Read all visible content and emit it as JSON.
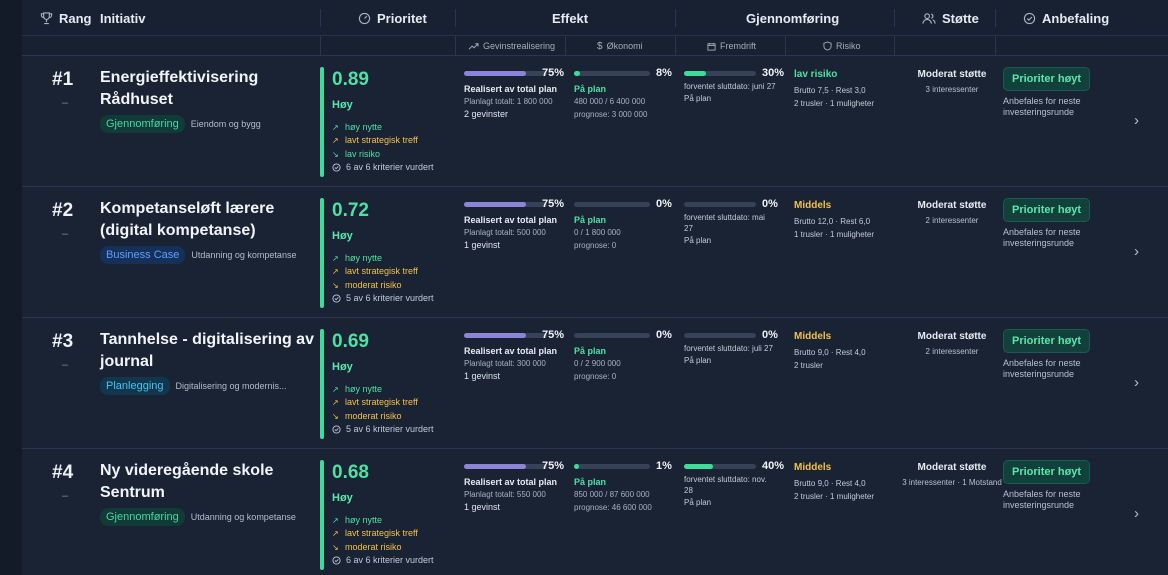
{
  "header": {
    "rang": "Rang",
    "initiativ": "Initiativ",
    "prioritet": "Prioritet",
    "effekt": "Effekt",
    "gjennomforing": "Gjennomføring",
    "stotte": "Støtte",
    "anbefaling": "Anbefaling"
  },
  "subheader": {
    "gevinstrealisering": "Gevinstrealisering",
    "okonomi": "Økonomi",
    "fremdrift": "Fremdrift",
    "risiko": "Risiko"
  },
  "colors": {
    "background": "#1a2334",
    "accent_green": "#4ee0a4",
    "warning_yellow": "#f2c14b",
    "gevinst_bar": "#8b84d7",
    "fremdrift_bar": "#3ddc9a"
  },
  "rows": [
    {
      "rank": "#1",
      "rank_change": "–",
      "title": "Energieffektivisering Rådhuset",
      "phase": "Gjennomføring",
      "category": "Eiendom og bygg",
      "score": "0.89",
      "level": "Høy",
      "reasons": [
        {
          "icon": "trend-up-arrow",
          "text": "høy nytte"
        },
        {
          "icon": "trend-up-arrow",
          "text": "lavt strategisk treff"
        },
        {
          "icon": "trend-down-arrow",
          "text": "lav risiko"
        }
      ],
      "criteria": "6 av 6 kriterier vurdert",
      "gevinst": {
        "pct": "75%",
        "value": 0.75,
        "label": "Realisert av total plan",
        "plan": "Planlagt totalt: 1 800 000",
        "count": "2 gevinster"
      },
      "okonomi": {
        "pct": "8%",
        "value": 0.08,
        "status": "På plan",
        "used": "480 000 / 6 400 000",
        "prognose": "prognose: 3 000 000"
      },
      "fremdrift": {
        "pct": "30%",
        "value": 0.3,
        "end": "forventet sluttdato: juni 27",
        "status": "På plan"
      },
      "risiko": {
        "level": "lav risiko",
        "tone": "green",
        "detail": "Brutto 7,5 · Rest 3,0",
        "counts": "2 trusler · 1 muligheter"
      },
      "support": {
        "level": "Moderat støtte",
        "detail": "3 interessenter"
      },
      "recommendation": {
        "label": "Prioriter høyt",
        "note": "Anbefales for neste investeringsrunde"
      }
    },
    {
      "rank": "#2",
      "rank_change": "–",
      "title": "Kompetanseløft lærere (digital kompetanse)",
      "phase": "Business Case",
      "category": "Utdanning og kompetanse",
      "score": "0.72",
      "level": "Høy",
      "reasons": [
        {
          "icon": "trend-up-arrow",
          "text": "høy nytte"
        },
        {
          "icon": "trend-up-arrow",
          "text": "lavt strategisk treff"
        },
        {
          "icon": "trend-down-arrow",
          "text": "moderat risiko"
        }
      ],
      "criteria": "5 av 6 kriterier vurdert",
      "gevinst": {
        "pct": "75%",
        "value": 0.75,
        "label": "Realisert av total plan",
        "plan": "Planlagt totalt: 500 000",
        "count": "1 gevinst"
      },
      "okonomi": {
        "pct": "0%",
        "value": 0,
        "status": "På plan",
        "used": "0 / 1 800 000",
        "prognose": "prognose: 0"
      },
      "fremdrift": {
        "pct": "0%",
        "value": 0,
        "end": "forventet sluttdato: mai 27",
        "status": "På plan"
      },
      "risiko": {
        "level": "Middels",
        "tone": "yellow",
        "detail": "Brutto 12,0 · Rest 6,0",
        "counts": "1 trusler · 1 muligheter"
      },
      "support": {
        "level": "Moderat støtte",
        "detail": "2 interessenter"
      },
      "recommendation": {
        "label": "Prioriter høyt",
        "note": "Anbefales for neste investeringsrunde"
      }
    },
    {
      "rank": "#3",
      "rank_change": "–",
      "title": "Tannhelse - digitalisering av journal",
      "phase": "Planlegging",
      "category": "Digitalisering og modernis...",
      "score": "0.69",
      "level": "Høy",
      "reasons": [
        {
          "icon": "trend-up-arrow",
          "text": "høy nytte"
        },
        {
          "icon": "trend-up-arrow",
          "text": "lavt strategisk treff"
        },
        {
          "icon": "trend-down-arrow",
          "text": "moderat risiko"
        }
      ],
      "criteria": "5 av 6 kriterier vurdert",
      "gevinst": {
        "pct": "75%",
        "value": 0.75,
        "label": "Realisert av total plan",
        "plan": "Planlagt totalt: 300 000",
        "count": "1 gevinst"
      },
      "okonomi": {
        "pct": "0%",
        "value": 0,
        "status": "På plan",
        "used": "0 / 2 900 000",
        "prognose": "prognose: 0"
      },
      "fremdrift": {
        "pct": "0%",
        "value": 0,
        "end": "forventet sluttdato: juli 27",
        "status": "På plan"
      },
      "risiko": {
        "level": "Middels",
        "tone": "yellow",
        "detail": "Brutto 9,0 · Rest 4,0",
        "counts": "2 trusler"
      },
      "support": {
        "level": "Moderat støtte",
        "detail": "2 interessenter"
      },
      "recommendation": {
        "label": "Prioriter høyt",
        "note": "Anbefales for neste investeringsrunde"
      }
    },
    {
      "rank": "#4",
      "rank_change": "–",
      "title": "Ny videregående skole Sentrum",
      "phase": "Gjennomføring",
      "category": "Utdanning og kompetanse",
      "score": "0.68",
      "level": "Høy",
      "reasons": [
        {
          "icon": "trend-up-arrow",
          "text": "høy nytte"
        },
        {
          "icon": "trend-up-arrow",
          "text": "lavt strategisk treff"
        },
        {
          "icon": "trend-down-arrow",
          "text": "moderat risiko"
        }
      ],
      "criteria": "6 av 6 kriterier vurdert",
      "gevinst": {
        "pct": "75%",
        "value": 0.75,
        "label": "Realisert av total plan",
        "plan": "Planlagt totalt: 550 000",
        "count": "1 gevinst"
      },
      "okonomi": {
        "pct": "1%",
        "value": 0.01,
        "status": "På plan",
        "used": "850 000 / 87 600 000",
        "prognose": "prognose: 46 600 000"
      },
      "fremdrift": {
        "pct": "40%",
        "value": 0.4,
        "end": "forventet sluttdato: nov. 28",
        "status": "På plan"
      },
      "risiko": {
        "level": "Middels",
        "tone": "yellow",
        "detail": "Brutto 9,0 · Rest 4,0",
        "counts": "2 trusler · 1 muligheter"
      },
      "support": {
        "level": "Moderat støtte",
        "detail": "3 interessenter · 1 Motstand"
      },
      "recommendation": {
        "label": "Prioriter høyt",
        "note": "Anbefales for neste investeringsrunde"
      }
    }
  ]
}
